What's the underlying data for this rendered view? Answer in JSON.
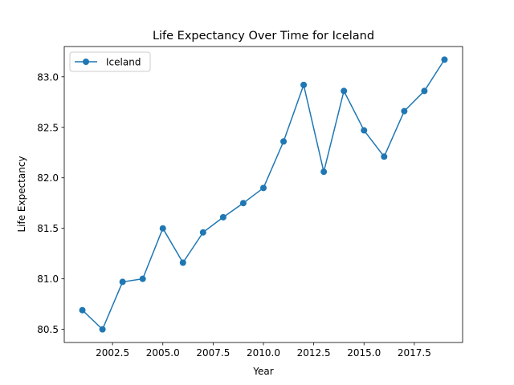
{
  "chart_data": {
    "type": "line",
    "title": "Life Expectancy Over Time for Iceland",
    "xlabel": "Year",
    "ylabel": "Life Expectancy",
    "xlim": [
      2000.1,
      2019.9
    ],
    "ylim": [
      80.37,
      83.3
    ],
    "x_ticks": [
      2002.5,
      2005.0,
      2007.5,
      2010.0,
      2012.5,
      2015.0,
      2017.5
    ],
    "x_tick_labels": [
      "2002.5",
      "2005.0",
      "2007.5",
      "2010.0",
      "2012.5",
      "2015.0",
      "2017.5"
    ],
    "y_ticks": [
      80.5,
      81.0,
      81.5,
      82.0,
      82.5,
      83.0
    ],
    "y_tick_labels": [
      "80.5",
      "81.0",
      "81.5",
      "82.0",
      "82.5",
      "83.0"
    ],
    "grid": false,
    "legend": {
      "placement": "top-left",
      "entries": [
        "Iceland"
      ]
    },
    "series": [
      {
        "name": "Iceland",
        "color": "#1f77b4",
        "marker": "circle",
        "x": [
          2001,
          2002,
          2003,
          2004,
          2005,
          2006,
          2007,
          2008,
          2009,
          2010,
          2011,
          2012,
          2013,
          2014,
          2015,
          2016,
          2017,
          2018,
          2019
        ],
        "values": [
          80.69,
          80.5,
          80.97,
          81.0,
          81.5,
          81.16,
          81.46,
          81.61,
          81.75,
          81.9,
          82.36,
          82.92,
          82.06,
          82.86,
          82.47,
          82.21,
          82.66,
          82.86,
          83.17
        ]
      }
    ]
  }
}
